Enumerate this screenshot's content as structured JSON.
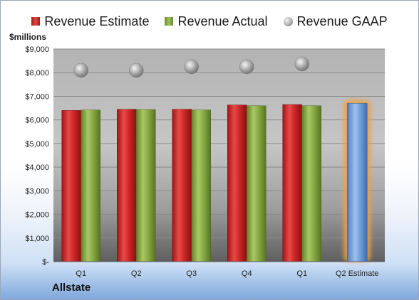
{
  "chart_data": {
    "type": "bar",
    "title": "",
    "units_label": "$millions",
    "company": "Allstate",
    "categories": [
      "Q1",
      "Q2",
      "Q3",
      "Q4",
      "Q1",
      "Q2 Estimate"
    ],
    "series": [
      {
        "name": "Revenue Estimate",
        "kind": "bar",
        "color": "#c62020",
        "values": [
          6400,
          6450,
          6450,
          6630,
          6650,
          null
        ]
      },
      {
        "name": "Revenue Actual",
        "kind": "bar",
        "color": "#8aac46",
        "values": [
          6420,
          6440,
          6420,
          6600,
          6600,
          null
        ]
      },
      {
        "name": "Revenue GAAP",
        "kind": "marker",
        "color": "#a0a0a0",
        "values": [
          8100,
          8100,
          8250,
          8250,
          8370,
          null
        ]
      }
    ],
    "highlight": {
      "category": "Q2 Estimate",
      "value": 6700,
      "color": "#6f9fd8",
      "glow": "#f0a040"
    },
    "ylim": [
      0,
      9000
    ],
    "yticks": [
      0,
      1000,
      2000,
      3000,
      4000,
      5000,
      6000,
      7000,
      8000,
      9000
    ],
    "ytick_labels": [
      "$-",
      "$1,000",
      "$2,000",
      "$3,000",
      "$4,000",
      "$5,000",
      "$6,000",
      "$7,000",
      "$8,000",
      "$9,000"
    ],
    "grid": true,
    "legend_position": "top"
  }
}
